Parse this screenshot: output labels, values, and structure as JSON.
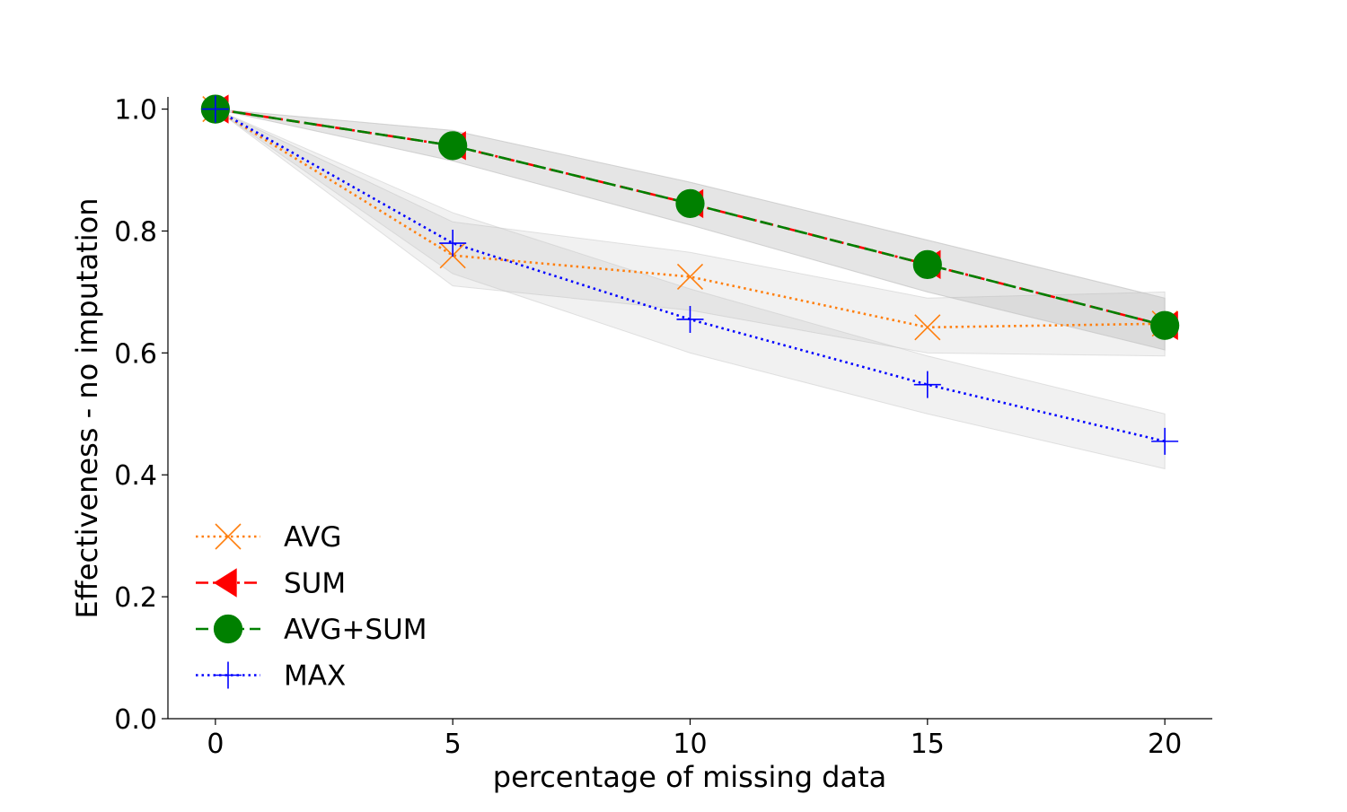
{
  "chart_data": {
    "type": "line",
    "title": "",
    "xlabel": "percentage of missing data",
    "ylabel": "Effectiveness - no imputation",
    "xlim": [
      -1,
      21
    ],
    "ylim": [
      0.0,
      1.02
    ],
    "xticks": [
      0,
      5,
      10,
      15,
      20
    ],
    "xtick_labels": [
      "0",
      "5",
      "10",
      "15",
      "20"
    ],
    "yticks": [
      0.0,
      0.2,
      0.4,
      0.6,
      0.8,
      1.0
    ],
    "ytick_labels": [
      "0.0",
      "0.2",
      "0.4",
      "0.6",
      "0.8",
      "1.0"
    ],
    "grid": false,
    "legend_position": "lower-left",
    "x": [
      0,
      5,
      10,
      15,
      20
    ],
    "series": [
      {
        "name": "AVG",
        "values": [
          1.0,
          0.76,
          0.725,
          0.642,
          0.648
        ],
        "lower": [
          1.0,
          0.71,
          0.67,
          0.6,
          0.595
        ],
        "upper": [
          1.0,
          0.815,
          0.765,
          0.69,
          0.7
        ],
        "color": "#ff7f0e",
        "marker": "x",
        "linestyle": "dotted"
      },
      {
        "name": "SUM",
        "values": [
          1.0,
          0.94,
          0.845,
          0.745,
          0.645
        ],
        "lower": [
          1.0,
          0.915,
          0.81,
          0.7,
          0.605
        ],
        "upper": [
          1.0,
          0.965,
          0.88,
          0.785,
          0.69
        ],
        "color": "#ff0000",
        "marker": "triangle-left",
        "linestyle": "dashdot"
      },
      {
        "name": "AVG+SUM",
        "values": [
          1.0,
          0.94,
          0.845,
          0.745,
          0.645
        ],
        "lower": [
          1.0,
          0.915,
          0.81,
          0.7,
          0.605
        ],
        "upper": [
          1.0,
          0.965,
          0.88,
          0.785,
          0.69
        ],
        "color": "#008000",
        "marker": "circle",
        "linestyle": "dashed"
      },
      {
        "name": "MAX",
        "values": [
          1.0,
          0.78,
          0.655,
          0.548,
          0.455
        ],
        "lower": [
          1.0,
          0.73,
          0.6,
          0.5,
          0.41
        ],
        "upper": [
          1.0,
          0.83,
          0.705,
          0.595,
          0.5
        ],
        "color": "#0000ff",
        "marker": "plus",
        "linestyle": "dotted"
      }
    ]
  }
}
